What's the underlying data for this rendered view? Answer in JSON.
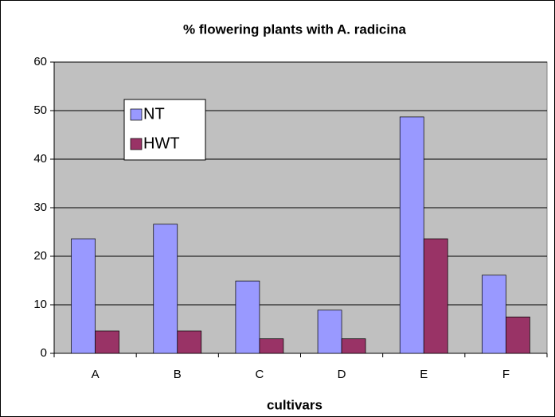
{
  "chart_data": {
    "type": "bar",
    "title": "% flowering plants with A. radicina",
    "x_label": "cultivars",
    "categories": [
      "A",
      "B",
      "C",
      "D",
      "E",
      "F"
    ],
    "series": [
      {
        "name": "NT",
        "color": "#9999ff",
        "values": [
          23.6,
          26.6,
          14.9,
          8.9,
          48.7,
          16.1
        ]
      },
      {
        "name": "HWT",
        "color": "#993366",
        "values": [
          4.6,
          4.6,
          3.0,
          3.0,
          23.6,
          7.5
        ]
      }
    ],
    "ylim": [
      0,
      60
    ],
    "yticks": [
      0,
      10,
      20,
      30,
      40,
      50,
      60
    ],
    "grid": true,
    "legend": "upper left"
  }
}
